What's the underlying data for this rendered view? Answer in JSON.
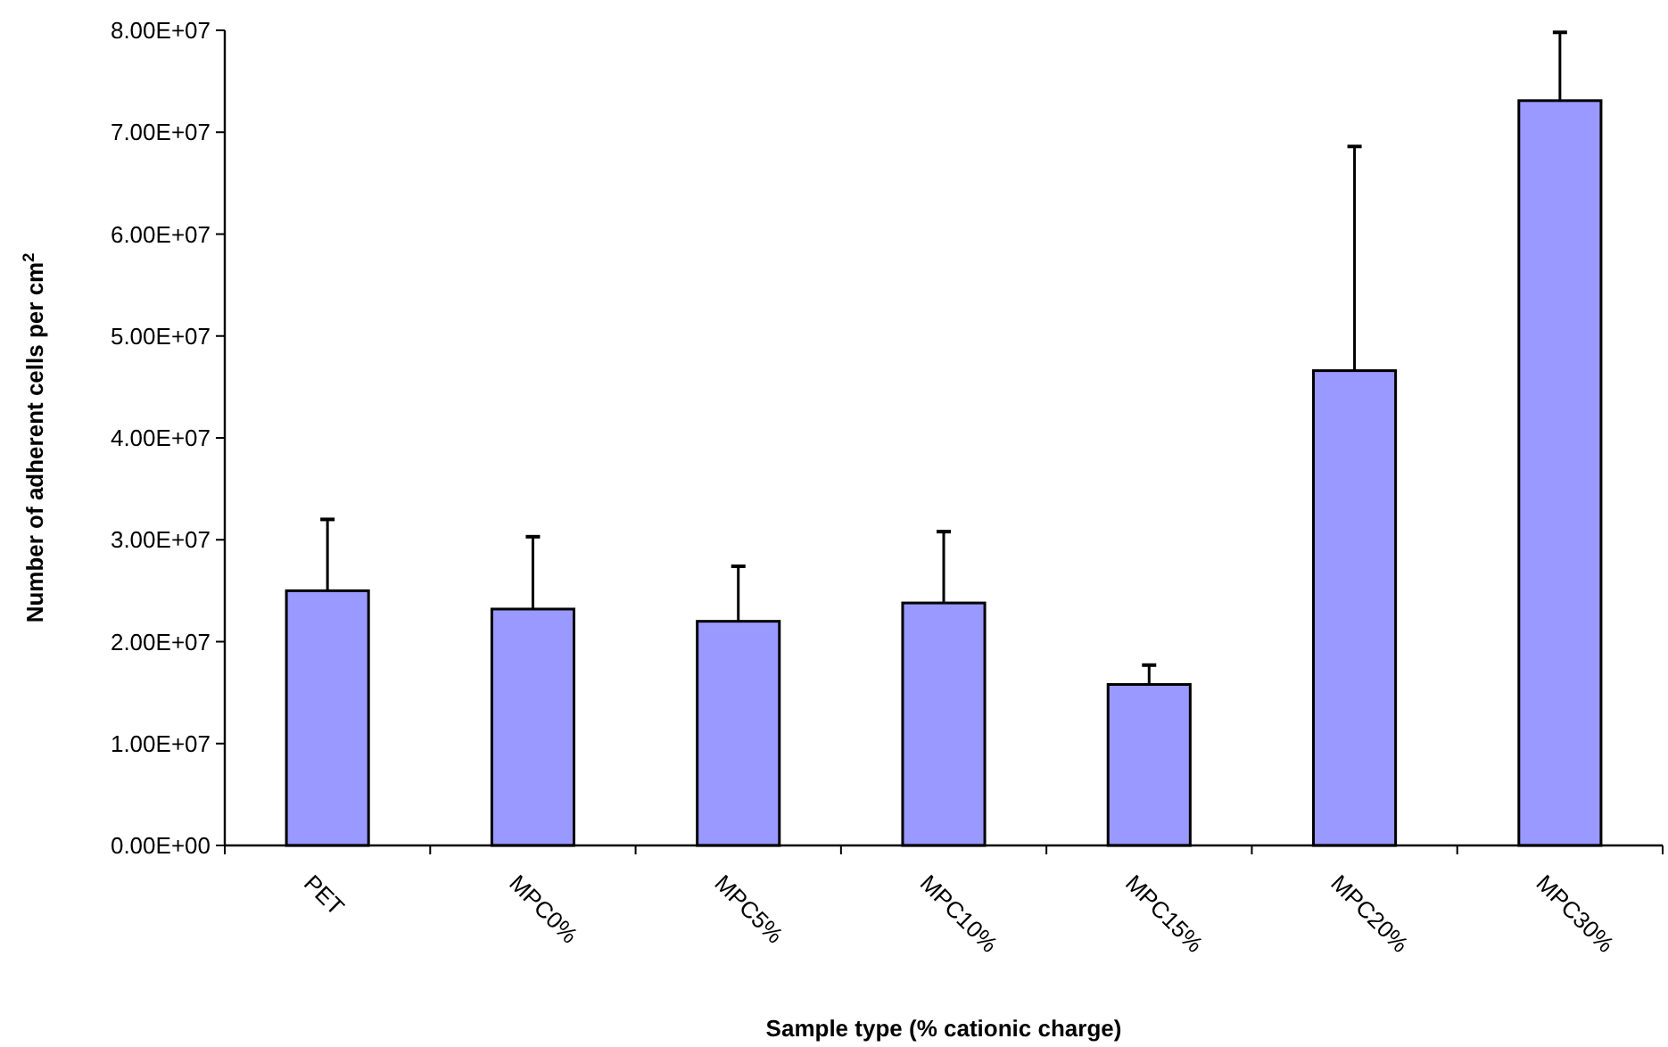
{
  "chart_data": {
    "type": "bar",
    "xlabel": "Sample type (% cationic charge)",
    "ylabel": "Number of adherent cells per cm$^{2}$",
    "categories": [
      "PET",
      "MPC0%",
      "MPC5%",
      "MPC10%",
      "MPC15%",
      "MPC20%",
      "MPC30%"
    ],
    "values": [
      25000000.0,
      23200000.0,
      22000000.0,
      23800000.0,
      15800000.0,
      46600000.0,
      73100000.0
    ],
    "errors": [
      [
        25000000.0,
        32000000.0
      ],
      [
        23200000.0,
        30300000.0
      ],
      [
        22000000.0,
        27400000.0
      ],
      [
        23800000.0,
        30800000.0
      ],
      [
        15800000.0,
        17700000.0
      ],
      [
        46600000.0,
        68600000.0
      ],
      [
        73100000.0,
        79800000.0
      ]
    ],
    "color": "#9999ff",
    "ylim": [
      0,
      80000000.0
    ],
    "yticks": [
      {
        "value": 0,
        "label": "0.00E+00"
      },
      {
        "value": 10000000.0,
        "label": "1.00E+07"
      },
      {
        "value": 20000000.0,
        "label": "2.00E+07"
      },
      {
        "value": 30000000.0,
        "label": "3.00E+07"
      },
      {
        "value": 40000000.0,
        "label": "4.00E+07"
      },
      {
        "value": 50000000.0,
        "label": "5.00E+07"
      },
      {
        "value": 60000000.0,
        "label": "6.00E+07"
      },
      {
        "value": 70000000.0,
        "label": "7.00E+07"
      },
      {
        "value": 80000000.0,
        "label": "8.00E+07"
      }
    ],
    "grid": false
  }
}
